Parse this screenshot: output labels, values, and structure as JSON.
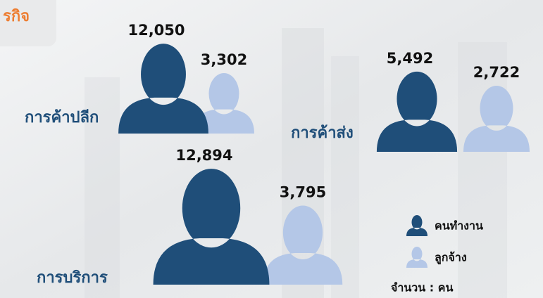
{
  "chart_data": {
    "type": "pictograph",
    "title": "รกิจ",
    "categories": [
      "การค้าปลีก",
      "การค้าส่ง",
      "การบริการ"
    ],
    "series": [
      {
        "name": "คนทำงาน",
        "color": "#1f4e79",
        "values": [
          12050,
          5492,
          12894
        ],
        "value_labels": [
          "12,050",
          "5,492",
          "12,894"
        ]
      },
      {
        "name": "ลูกจ้าง",
        "color": "#b4c7e7",
        "values": [
          3302,
          2722,
          3795
        ],
        "value_labels": [
          "3,302",
          "2,722",
          "3,795"
        ]
      }
    ],
    "note": "จำนวน : คน"
  }
}
